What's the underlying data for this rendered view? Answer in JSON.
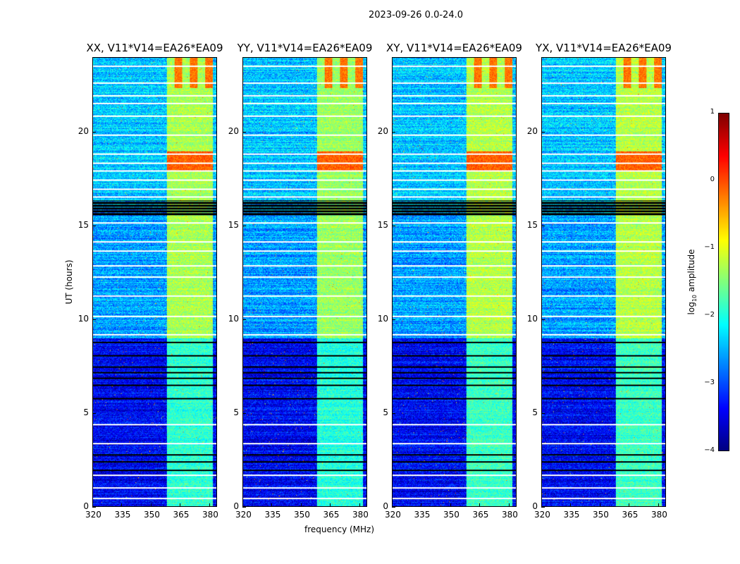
{
  "chart_data": {
    "type": "heatmap",
    "title": "2023-09-26 0.0-24.0",
    "xlabel": "frequency (MHz)",
    "ylabel": "UT (hours)",
    "xlim": [
      320,
      384
    ],
    "ylim": [
      0,
      24
    ],
    "xticks": [
      "320",
      "335",
      "350",
      "365",
      "380"
    ],
    "xtick_values": [
      320,
      335,
      350,
      365,
      380
    ],
    "yticks": [
      "0",
      "5",
      "10",
      "15",
      "20"
    ],
    "ytick_values": [
      0,
      5,
      10,
      15,
      20
    ],
    "panels": [
      {
        "title": "XX, V11*V14=EA26*EA09",
        "band_strength": 1.0
      },
      {
        "title": "YY, V11*V14=EA26*EA09",
        "band_strength": 1.05
      },
      {
        "title": "XY, V11*V14=EA26*EA09",
        "band_strength": 0.95
      },
      {
        "title": "YX, V11*V14=EA26*EA09",
        "band_strength": 0.95
      }
    ],
    "features": {
      "bright_band_mhz": [
        358,
        382
      ],
      "background_log_amp_early": -3.4,
      "background_log_amp_late": -2.6,
      "band_log_amp": -1.3,
      "strong_rfi_hours": [
        18.0,
        19.0
      ],
      "strong_rfi_log_amp": -0.1,
      "flagged_white_hours": [
        0.45,
        1.0,
        1.7,
        3.4,
        4.4,
        9.2,
        10.2,
        11.3,
        12.3,
        12.9,
        13.7,
        14.2,
        15.2,
        16.6,
        17.0,
        17.5,
        18.0,
        18.4,
        18.9,
        19.9,
        20.9,
        21.6,
        22.0,
        22.7,
        23.6
      ],
      "flagged_black_hours": [
        1.95,
        2.4,
        2.8,
        5.8,
        6.5,
        6.9,
        7.2,
        7.5,
        8.1,
        8.8
      ],
      "black_block_hours": [
        15.55,
        16.4
      ]
    },
    "colorbar": {
      "label": "log10 amplitude",
      "label_base": "log",
      "label_sub": "10",
      "label_rest": " amplitude",
      "range": [
        -4,
        1
      ],
      "ticks": [
        "1",
        "0",
        "−1",
        "−2",
        "−3",
        "−4"
      ],
      "tick_values": [
        1,
        0,
        -1,
        -2,
        -3,
        -4
      ],
      "colormap": "jet"
    }
  }
}
